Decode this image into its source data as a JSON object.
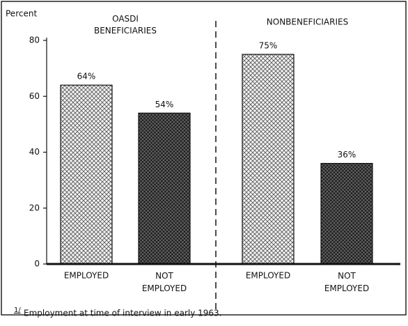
{
  "chart_data": {
    "type": "bar",
    "y_label": "Percent",
    "groups": [
      {
        "name": "OASDI BENEFICIARIES",
        "members": [
          0,
          1
        ]
      },
      {
        "name": "NONBENEFICIARIES",
        "members": [
          2,
          3
        ]
      }
    ],
    "categories": [
      "EMPLOYED",
      "NOT EMPLOYED",
      "EMPLOYED",
      "NOT EMPLOYED"
    ],
    "values": [
      64,
      54,
      75,
      36
    ],
    "value_labels": [
      "64%",
      "54%",
      "75%",
      "36%"
    ],
    "colors": [
      "#e6e6e6",
      "#2a2a2a",
      "#e6e6e6",
      "#2a2a2a"
    ],
    "ylim": [
      0,
      80
    ],
    "yticks": [
      0,
      20,
      40,
      60,
      80
    ],
    "footnote": {
      "marker": "1/",
      "text": "Employment at time of interview in early 1963."
    }
  }
}
